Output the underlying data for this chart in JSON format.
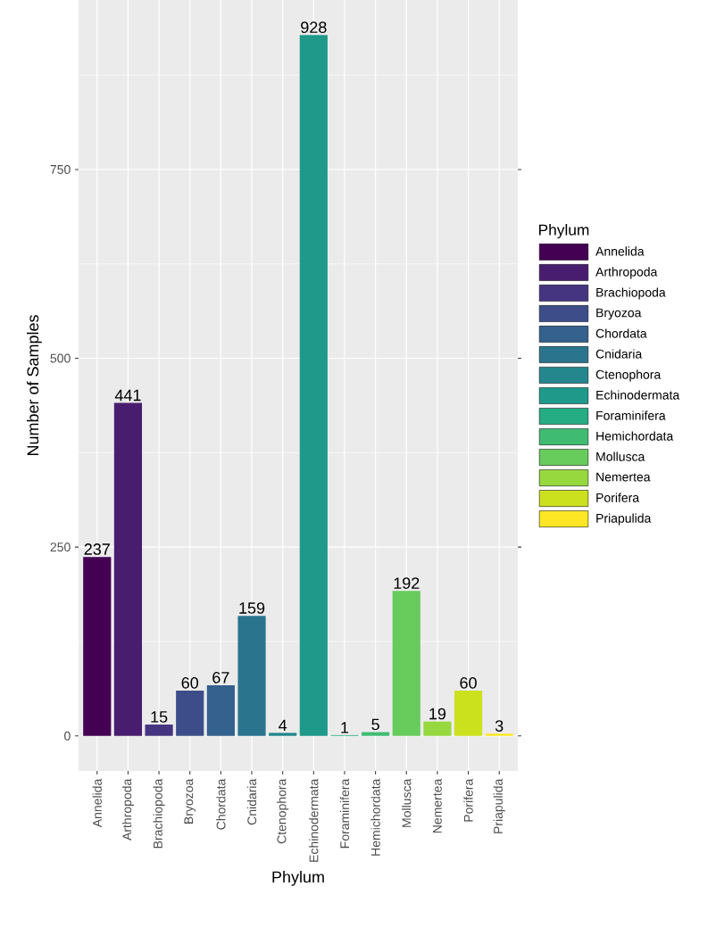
{
  "chart_data": {
    "type": "bar",
    "xlabel": "Phylum",
    "ylabel": "Number of Samples",
    "legend_title": "Phylum",
    "categories": [
      "Annelida",
      "Arthropoda",
      "Brachiopoda",
      "Bryozoa",
      "Chordata",
      "Cnidaria",
      "Ctenophora",
      "Echinodermata",
      "Foraminifera",
      "Hemichordata",
      "Mollusca",
      "Nemertea",
      "Porifera",
      "Priapulida"
    ],
    "series": [
      {
        "name": "Annelida",
        "color": "#440154",
        "values": [
          237,
          null,
          null,
          null,
          null,
          null,
          null,
          null,
          null,
          null,
          null,
          null,
          null,
          null
        ]
      },
      {
        "name": "Arthropoda",
        "color": "#481d6f",
        "values": [
          null,
          441,
          null,
          null,
          null,
          null,
          null,
          null,
          null,
          null,
          null,
          null,
          null,
          null
        ]
      },
      {
        "name": "Brachiopoda",
        "color": "#453581",
        "values": [
          null,
          null,
          15,
          null,
          null,
          null,
          null,
          null,
          null,
          null,
          null,
          null,
          null,
          null
        ]
      },
      {
        "name": "Bryozoa",
        "color": "#3d4d8a",
        "values": [
          null,
          null,
          null,
          60,
          null,
          null,
          null,
          null,
          null,
          null,
          null,
          null,
          null,
          null
        ]
      },
      {
        "name": "Chordata",
        "color": "#34618d",
        "values": [
          null,
          null,
          null,
          null,
          67,
          null,
          null,
          null,
          null,
          null,
          null,
          null,
          null,
          null
        ]
      },
      {
        "name": "Cnidaria",
        "color": "#2b748e",
        "values": [
          null,
          null,
          null,
          null,
          null,
          159,
          null,
          null,
          null,
          null,
          null,
          null,
          null,
          null
        ]
      },
      {
        "name": "Ctenophora",
        "color": "#24878e",
        "values": [
          null,
          null,
          null,
          null,
          null,
          null,
          4,
          null,
          null,
          null,
          null,
          null,
          null,
          null
        ]
      },
      {
        "name": "Echinodermata",
        "color": "#1f998a",
        "values": [
          null,
          null,
          null,
          null,
          null,
          null,
          null,
          928,
          null,
          null,
          null,
          null,
          null,
          null
        ]
      },
      {
        "name": "Foraminifera",
        "color": "#25ac82",
        "values": [
          null,
          null,
          null,
          null,
          null,
          null,
          null,
          null,
          1,
          null,
          null,
          null,
          null,
          null
        ]
      },
      {
        "name": "Hemichordata",
        "color": "#40bc72",
        "values": [
          null,
          null,
          null,
          null,
          null,
          null,
          null,
          null,
          null,
          5,
          null,
          null,
          null,
          null
        ]
      },
      {
        "name": "Mollusca",
        "color": "#67cc5c",
        "values": [
          null,
          null,
          null,
          null,
          null,
          null,
          null,
          null,
          null,
          null,
          192,
          null,
          null,
          null
        ]
      },
      {
        "name": "Nemertea",
        "color": "#97d83f",
        "values": [
          null,
          null,
          null,
          null,
          null,
          null,
          null,
          null,
          null,
          null,
          null,
          19,
          null,
          null
        ]
      },
      {
        "name": "Porifera",
        "color": "#cbe11e",
        "values": [
          null,
          null,
          null,
          null,
          null,
          null,
          null,
          null,
          null,
          null,
          null,
          null,
          60,
          null
        ]
      },
      {
        "name": "Priapulida",
        "color": "#fde725",
        "values": [
          null,
          null,
          null,
          null,
          null,
          null,
          null,
          null,
          null,
          null,
          null,
          null,
          null,
          3
        ]
      }
    ],
    "ylim": [
      -46.4,
      974.4
    ],
    "yticks": [
      0,
      250,
      500,
      750
    ],
    "grid": true,
    "legend": "right",
    "data_labels": true
  }
}
